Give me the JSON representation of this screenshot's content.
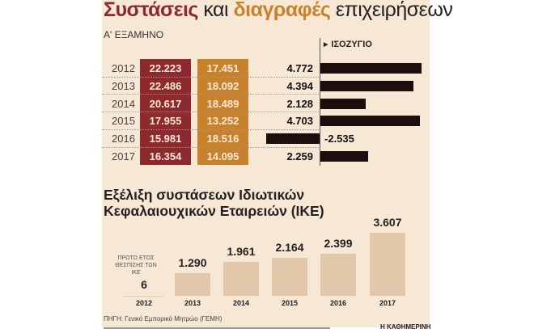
{
  "title": {
    "part1": "Συστάσεις",
    "part2": "και",
    "part3": "διαγραφές",
    "part4": "επιχειρήσεων"
  },
  "subtitle": "Α' ΕΞΑΜΗΝΟ",
  "balance_header": "ΙΣΟΖΥΓΙΟ",
  "colors": {
    "registrations": "#8e2a2e",
    "deletions": "#c8822c",
    "balance": "#1a0e0e",
    "ike": "#e2c7aa",
    "background": "#f7e7d5"
  },
  "chart_data": [
    {
      "type": "table",
      "title": "Συστάσεις και διαγραφές επιχειρήσεων",
      "subtitle": "Α' ΕΞΑΜΗΝΟ",
      "rows": [
        {
          "year": "2012",
          "registrations": "22.223",
          "deletions": "17.451",
          "balance": "4.772",
          "balance_value": 4772
        },
        {
          "year": "2013",
          "registrations": "22.486",
          "deletions": "18.092",
          "balance": "4.394",
          "balance_value": 4394
        },
        {
          "year": "2014",
          "registrations": "20.617",
          "deletions": "18.489",
          "balance": "2.128",
          "balance_value": 2128
        },
        {
          "year": "2015",
          "registrations": "17.955",
          "deletions": "13.252",
          "balance": "4.703",
          "balance_value": 4703
        },
        {
          "year": "2016",
          "registrations": "15.981",
          "deletions": "18.516",
          "balance": "-2.535",
          "balance_value": -2535
        },
        {
          "year": "2017",
          "registrations": "16.354",
          "deletions": "14.095",
          "balance": "2.259",
          "balance_value": 2259
        }
      ]
    },
    {
      "type": "bar",
      "title": "Εξέλιξη συστάσεων Ιδιωτικών Κεφαλαιουχικών Εταιρειών (ΙΚΕ)",
      "categories": [
        "2012",
        "2013",
        "2014",
        "2015",
        "2016",
        "2017"
      ],
      "labels": [
        "6",
        "1.290",
        "1.961",
        "2.164",
        "2.399",
        "3.607"
      ],
      "values": [
        6,
        1290,
        1961,
        2164,
        2399,
        3607
      ],
      "annotation": "ΠΡΩΤΟ ΕΤΟΣ ΘΕΣΠΙΣΗΣ ΤΩΝ ΙΚΕ"
    }
  ],
  "source": "ΠΗΓΗ: Γενικό Εμπορικό Μητρώο (ΓΕΜΗ)",
  "brand": "Η ΚΑΘΗΜΕΡΙΝΗ"
}
